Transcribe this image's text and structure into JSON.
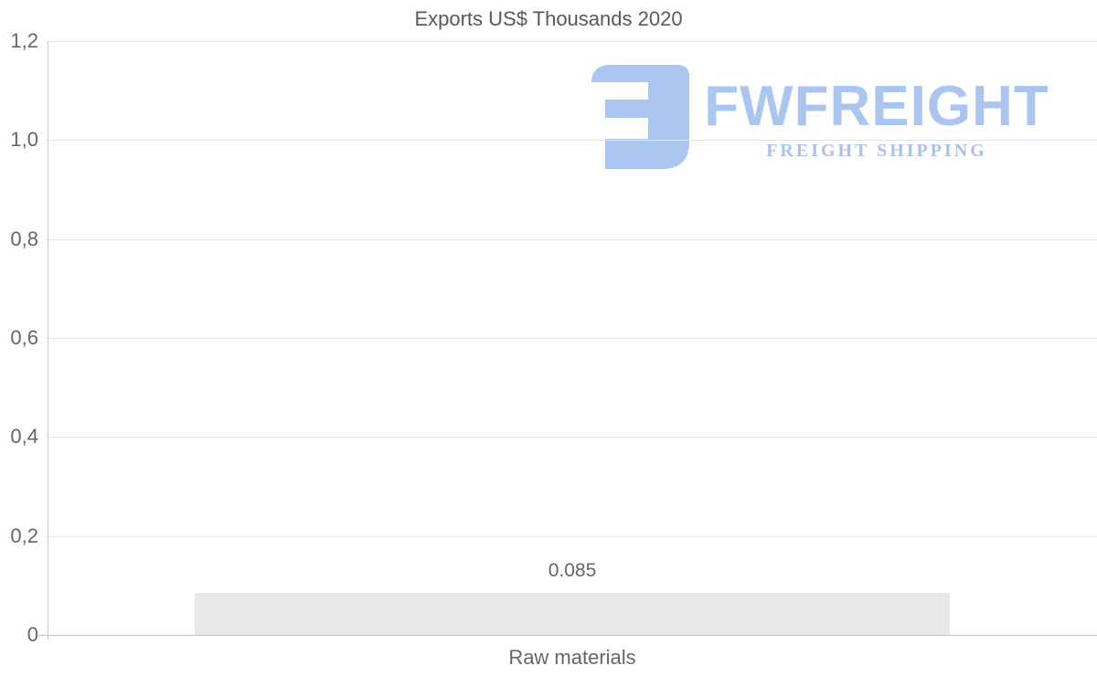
{
  "title": "Exports US$ Thousands 2020",
  "watermark": {
    "brand": "FWFREIGHT",
    "tagline": "FREIGHT SHIPPING",
    "color": "#a9c5f0",
    "tagline_color": "#a9c2ea"
  },
  "chart_data": {
    "type": "bar",
    "title": "Exports US$ Thousands 2020",
    "categories": [
      "Raw materials"
    ],
    "values": [
      0.085
    ],
    "value_labels": [
      "0.085"
    ],
    "xlabel": "",
    "ylabel": "",
    "ylim": [
      0,
      1.2
    ],
    "yticks": [
      0,
      0.2,
      0.4,
      0.6,
      0.8,
      1.0,
      1.2
    ],
    "ytick_labels": [
      "0",
      "0,2",
      "0,4",
      "0,6",
      "0,8",
      "1,0",
      "1,2"
    ],
    "grid": true,
    "legend": false,
    "decimal_separator_axis": ",",
    "decimal_separator_label": ".",
    "colors": {
      "bar": "#e9e9e9",
      "grid": "#e3e3e3",
      "axis": "#c9c9c9",
      "zero_line": "#c4c4c4",
      "tick_text": "#666666",
      "title_text": "#595959"
    }
  }
}
